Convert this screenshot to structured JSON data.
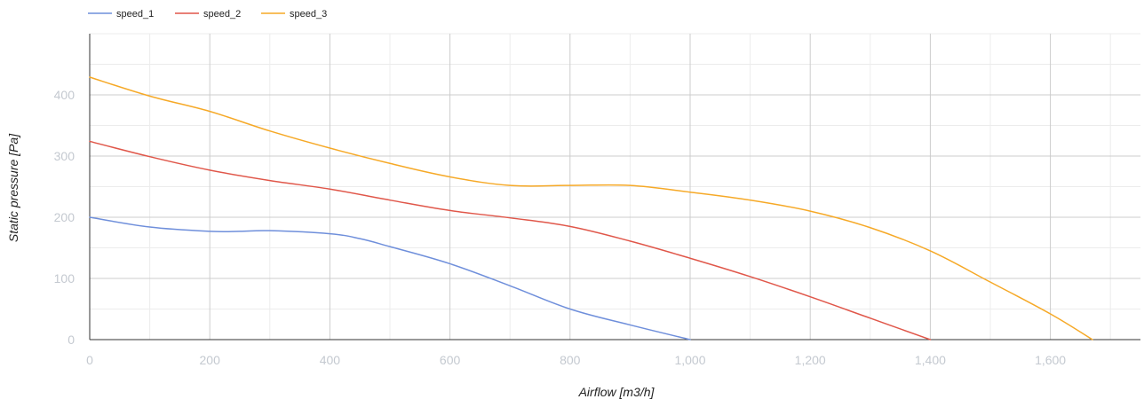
{
  "chart_data": {
    "type": "line",
    "title": "",
    "xlabel": "Airflow [m3/h]",
    "ylabel": "Static pressure [Pa]",
    "xlim": [
      0,
      1750
    ],
    "ylim": [
      0,
      500
    ],
    "x_ticks": [
      0,
      200,
      400,
      600,
      800,
      1000,
      1200,
      1400,
      1600
    ],
    "x_tick_labels": [
      "0",
      "200",
      "400",
      "600",
      "800",
      "1,000",
      "1,200",
      "1,400",
      "1,600"
    ],
    "y_ticks": [
      0,
      100,
      200,
      300,
      400
    ],
    "y_tick_labels": [
      "0",
      "100",
      "200",
      "300",
      "400"
    ],
    "grid": true,
    "legend_position": "top-left",
    "series": [
      {
        "name": "speed_1",
        "color": "#6f8fdb",
        "points": [
          [
            0,
            200
          ],
          [
            100,
            184
          ],
          [
            200,
            177
          ],
          [
            250,
            177
          ],
          [
            300,
            178
          ],
          [
            400,
            173
          ],
          [
            450,
            165
          ],
          [
            500,
            152
          ],
          [
            600,
            124
          ],
          [
            700,
            88
          ],
          [
            800,
            50
          ],
          [
            900,
            24
          ],
          [
            1000,
            0
          ]
        ]
      },
      {
        "name": "speed_2",
        "color": "#e0574a",
        "points": [
          [
            0,
            324
          ],
          [
            100,
            299
          ],
          [
            200,
            277
          ],
          [
            300,
            260
          ],
          [
            400,
            246
          ],
          [
            500,
            228
          ],
          [
            600,
            211
          ],
          [
            700,
            199
          ],
          [
            800,
            185
          ],
          [
            900,
            161
          ],
          [
            1000,
            133
          ],
          [
            1100,
            103
          ],
          [
            1200,
            70
          ],
          [
            1300,
            35
          ],
          [
            1400,
            0
          ]
        ]
      },
      {
        "name": "speed_3",
        "color": "#f6a927",
        "points": [
          [
            0,
            429
          ],
          [
            100,
            398
          ],
          [
            200,
            373
          ],
          [
            300,
            341
          ],
          [
            400,
            313
          ],
          [
            500,
            288
          ],
          [
            600,
            266
          ],
          [
            700,
            252
          ],
          [
            800,
            252
          ],
          [
            900,
            252
          ],
          [
            1000,
            241
          ],
          [
            1100,
            228
          ],
          [
            1200,
            210
          ],
          [
            1300,
            183
          ],
          [
            1400,
            145
          ],
          [
            1500,
            94
          ],
          [
            1600,
            42
          ],
          [
            1670,
            0
          ]
        ]
      }
    ]
  }
}
